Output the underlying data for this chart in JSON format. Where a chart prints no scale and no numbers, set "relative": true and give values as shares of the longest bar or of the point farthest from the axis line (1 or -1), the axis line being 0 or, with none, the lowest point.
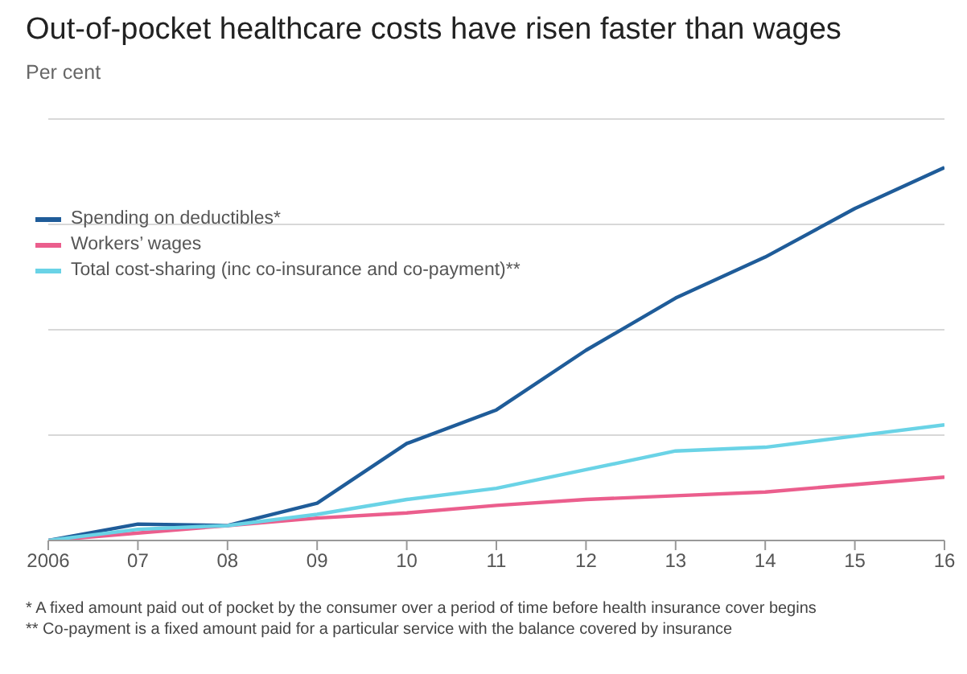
{
  "chart_data": {
    "type": "line",
    "title": "Out-of-pocket healthcare costs have risen faster than wages",
    "subtitle": "Per cent",
    "relative": true,
    "grid": "y",
    "legend": "top left",
    "marker": "none",
    "line_style": "solid",
    "categories": [
      "2006",
      "07",
      "08",
      "09",
      "10",
      "11",
      "12",
      "13",
      "14",
      "15",
      "16"
    ],
    "series": [
      {
        "name": "Spending on deductibles*",
        "color": "#1f5c99",
        "values": [
          0,
          0.044,
          0.04,
          0.1,
          0.26,
          0.35,
          0.51,
          0.65,
          0.76,
          0.89,
          1
        ]
      },
      {
        "name": "Workers’ wages",
        "color": "#eb5e8d",
        "values": [
          0,
          0.02,
          0.04,
          0.06,
          0.074,
          0.094,
          0.11,
          0.12,
          0.13,
          0.15,
          0.17
        ]
      },
      {
        "name": "Total cost-sharing (inc co-insurance and co-payment)**",
        "color": "#6ad3e6",
        "values": [
          0,
          0.03,
          0.04,
          0.07,
          0.11,
          0.14,
          0.19,
          0.24,
          0.25,
          0.28,
          0.31
        ]
      }
    ],
    "annotations": [
      "* A fixed amount paid out of pocket by the consumer over a period of time before health insurance cover begins",
      "** Co-payment is a fixed amount paid for a particular service with the balance covered by insurance"
    ]
  }
}
